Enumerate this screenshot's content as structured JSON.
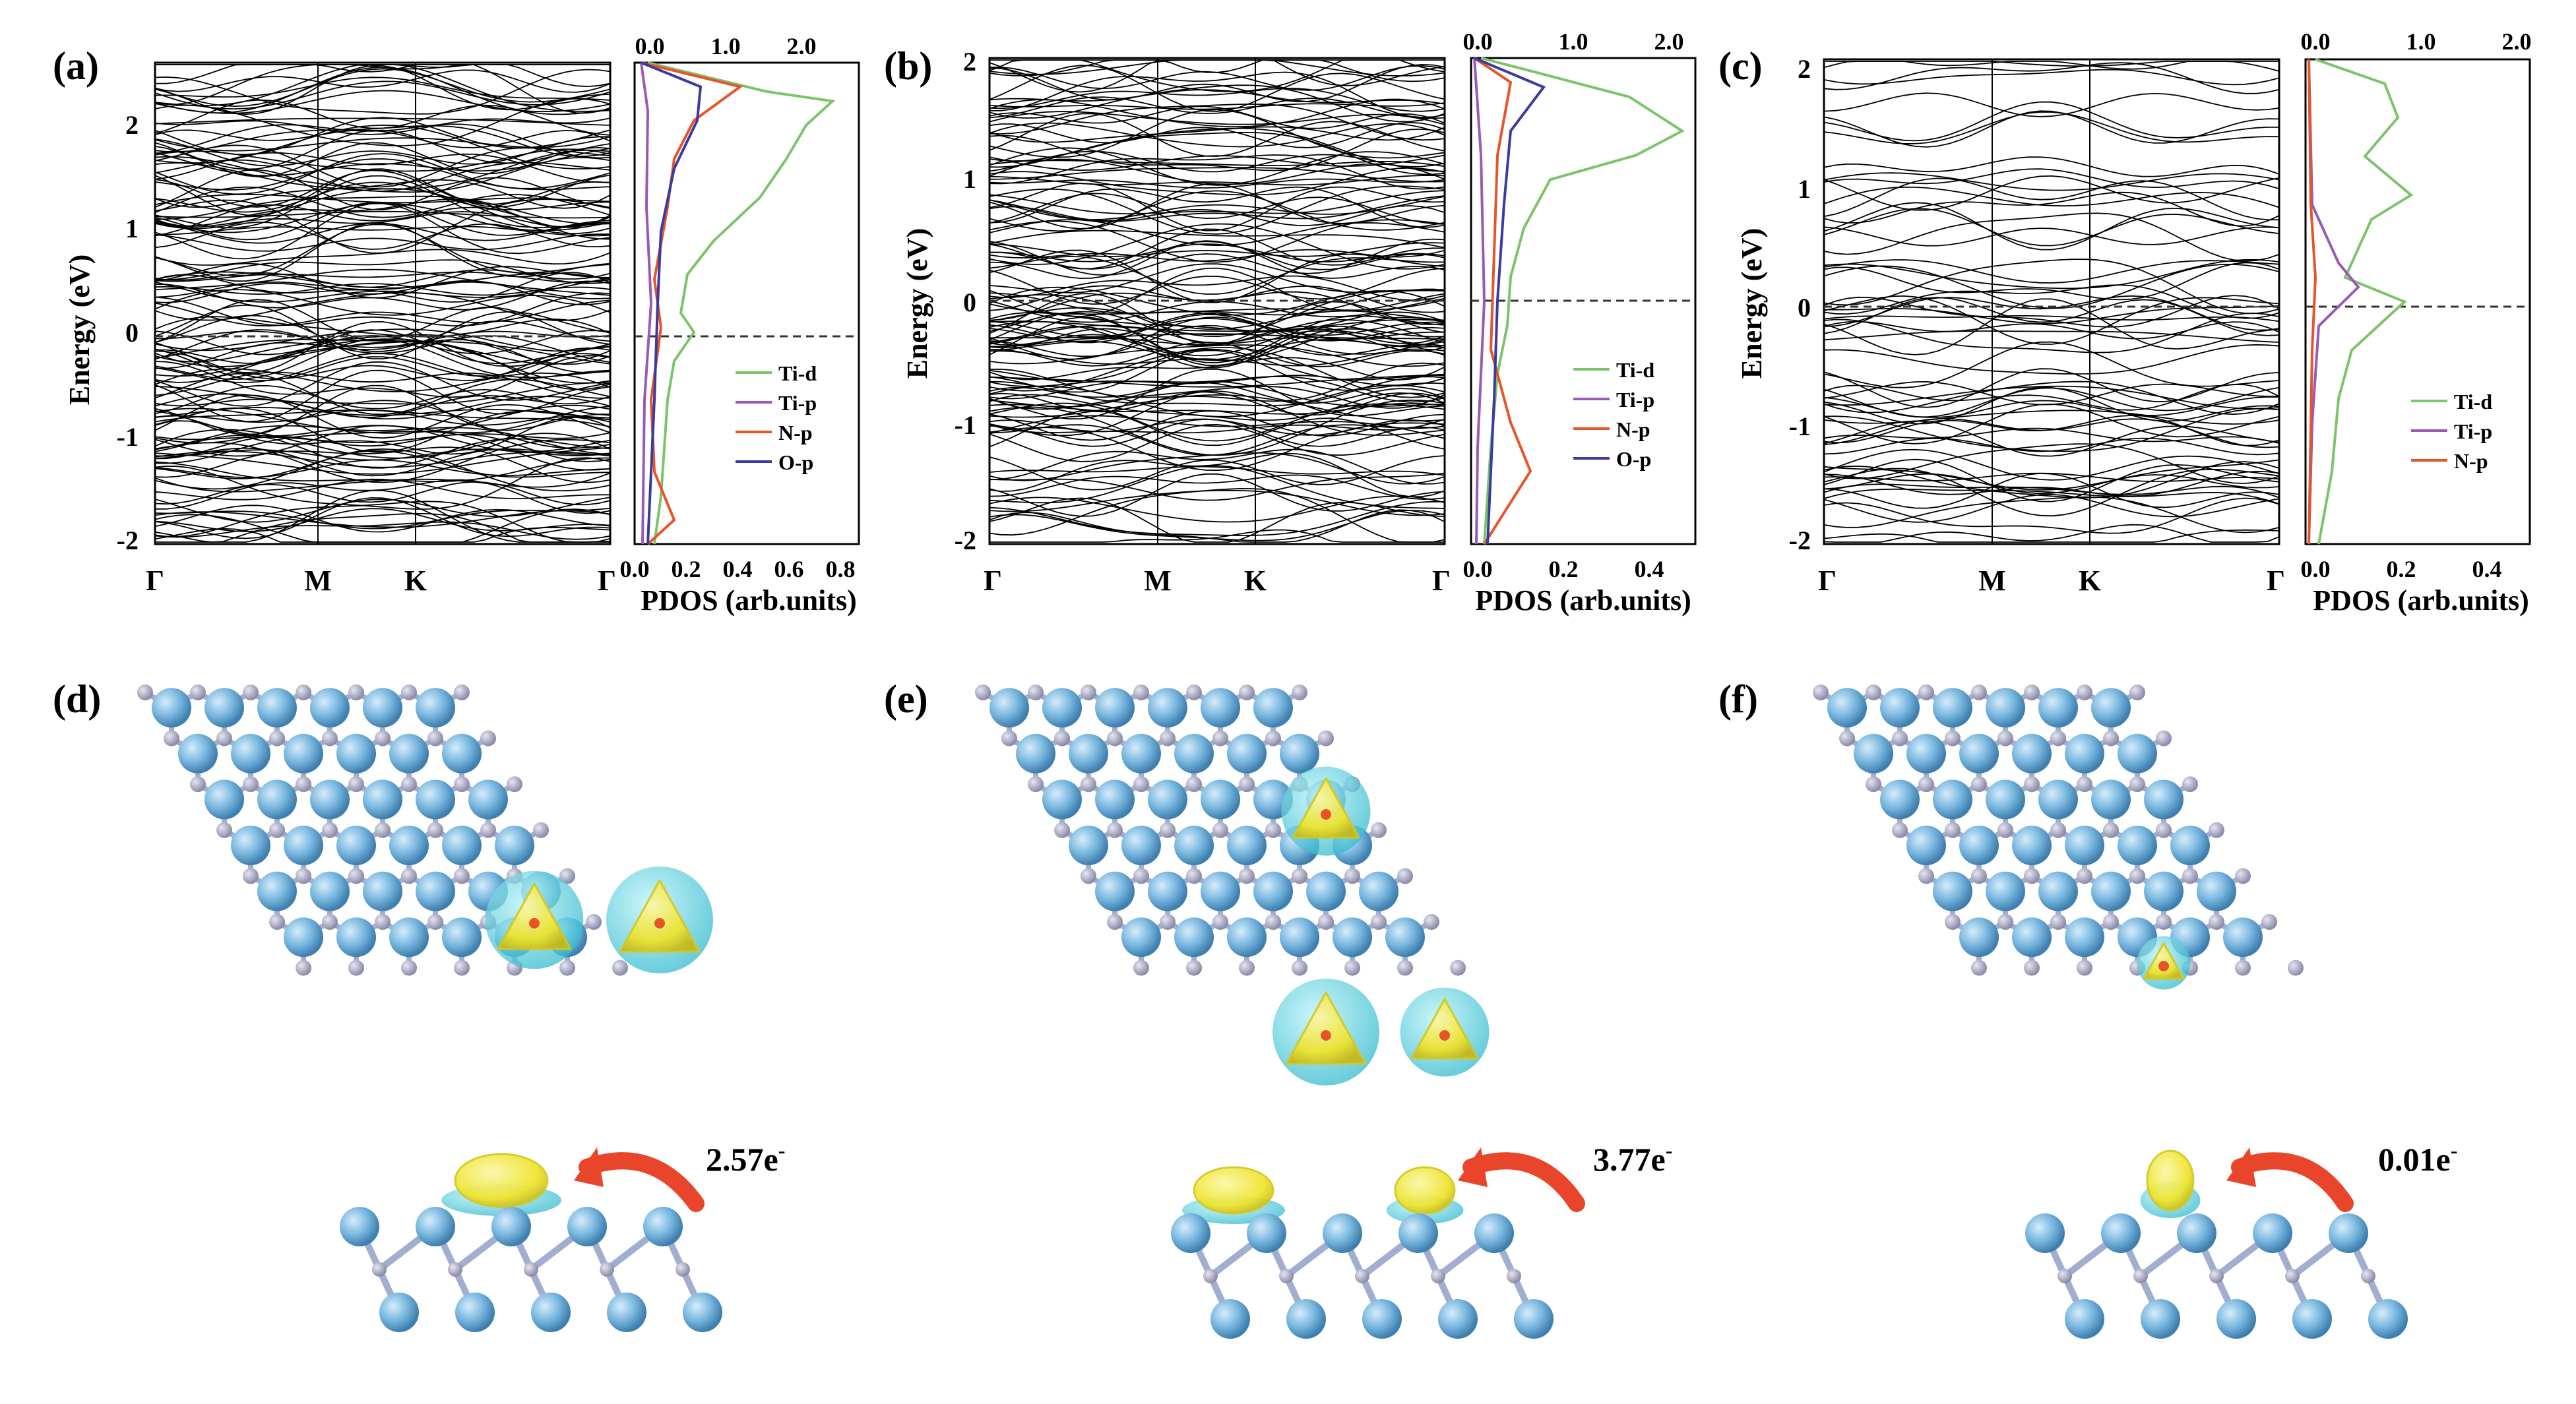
{
  "band_panels": [
    {
      "label": "(a)",
      "ylabel": "Energy (eV)",
      "y_ticks": [
        "2",
        "1",
        "0",
        "-1",
        "-2"
      ],
      "ylim": [
        -2.0,
        2.5
      ],
      "kpoints": [
        "Γ",
        "M",
        "K",
        "Γ"
      ],
      "pdos_xlabel": "PDOS (arb.units)",
      "pdos_bottom_ticks": [
        "0.0",
        "0.2",
        "0.4",
        "0.6",
        "0.8"
      ],
      "pdos_top_ticks": [
        "0.0",
        "1.0",
        "2.0"
      ],
      "legend": [
        {
          "name": "Ti-d",
          "color": "#7cc46a"
        },
        {
          "name": "Ti-p",
          "color": "#9b59b6"
        },
        {
          "name": "N-p",
          "color": "#e8542a"
        },
        {
          "name": "O-p",
          "color": "#3a3aa0"
        }
      ]
    },
    {
      "label": "(b)",
      "ylabel": "Energy (eV)",
      "y_ticks": [
        "2",
        "1",
        "0",
        "-1",
        "-2"
      ],
      "ylim": [
        -2.0,
        2.0
      ],
      "kpoints": [
        "Γ",
        "M",
        "K",
        "Γ"
      ],
      "pdos_xlabel": "PDOS (arb.units)",
      "pdos_bottom_ticks": [
        "0.0",
        "0.2",
        "0.4"
      ],
      "pdos_top_ticks": [
        "0.0",
        "1.0",
        "2.0"
      ],
      "legend": [
        {
          "name": "Ti-d",
          "color": "#7cc46a"
        },
        {
          "name": "Ti-p",
          "color": "#9b59b6"
        },
        {
          "name": "N-p",
          "color": "#e8542a"
        },
        {
          "name": "O-p",
          "color": "#3a3aa0"
        }
      ]
    },
    {
      "label": "(c)",
      "ylabel": "Energy (eV)",
      "y_ticks": [
        "2",
        "1",
        "0",
        "-1",
        "-2"
      ],
      "ylim": [
        -2.0,
        2.1
      ],
      "kpoints": [
        "Γ",
        "M",
        "K",
        "Γ"
      ],
      "pdos_xlabel": "PDOS (arb.units)",
      "pdos_bottom_ticks": [
        "0.0",
        "0.2",
        "0.4"
      ],
      "pdos_top_ticks": [
        "0.0",
        "1.0",
        "2.0"
      ],
      "legend": [
        {
          "name": "Ti-d",
          "color": "#7cc46a"
        },
        {
          "name": "Ti-p",
          "color": "#9b59b6"
        },
        {
          "name": "N-p",
          "color": "#e8542a"
        }
      ]
    }
  ],
  "structure_panels": [
    {
      "label": "(d)",
      "charge_transfer": "2.57e",
      "superscript": "-"
    },
    {
      "label": "(e)",
      "charge_transfer": "3.77e",
      "superscript": "-"
    },
    {
      "label": "(f)",
      "charge_transfer": "0.01e",
      "superscript": "-"
    }
  ],
  "colors": {
    "band_line": "#000000",
    "atom_large": "#7ab8e0",
    "atom_small": "#a8a8c8",
    "bond": "#9aa8cc",
    "charge_accumulation": "#f2ea2a",
    "charge_depletion": "#3cc8d8",
    "arrow": "#e8452a",
    "ti_d": "#7cc46a",
    "ti_p": "#9b59b6",
    "n_p": "#e8542a",
    "o_p": "#3a3aa0"
  }
}
